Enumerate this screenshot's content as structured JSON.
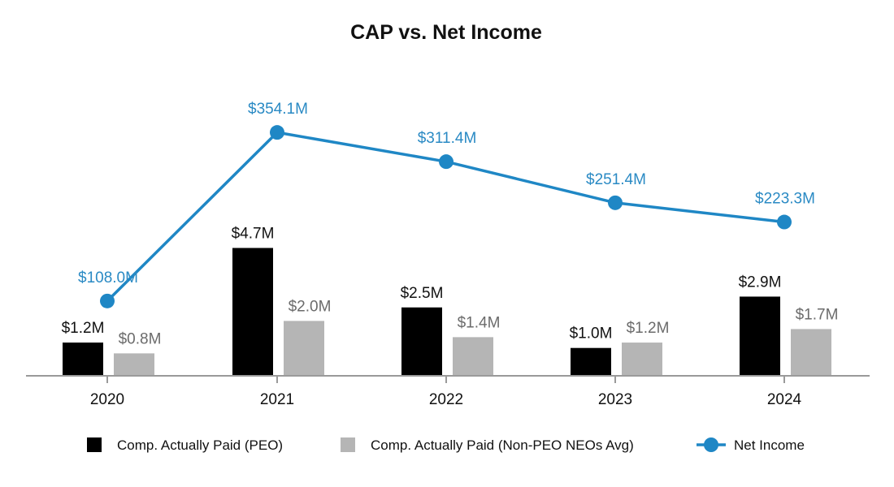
{
  "chart_data": {
    "type": "bar",
    "title": "CAP vs. Net Income",
    "categories": [
      "2020",
      "2021",
      "2022",
      "2023",
      "2024"
    ],
    "series": [
      {
        "name": "Comp. Actually Paid (PEO)",
        "kind": "bar",
        "color": "#000000",
        "values": [
          1.2,
          4.7,
          2.5,
          1.0,
          2.9
        ],
        "labels": [
          "$1.2M",
          "$4.7M",
          "$2.5M",
          "$1.0M",
          "$2.9M"
        ]
      },
      {
        "name": "Comp. Actually Paid (Non-PEO NEOs Avg)",
        "kind": "bar",
        "color": "#b5b5b5",
        "values": [
          0.8,
          2.0,
          1.4,
          1.2,
          1.7
        ],
        "labels": [
          "$0.8M",
          "$2.0M",
          "$1.4M",
          "$1.2M",
          "$1.7M"
        ]
      },
      {
        "name": "Net Income",
        "kind": "line",
        "color": "#1f87c5",
        "values": [
          108.0,
          354.1,
          311.4,
          251.4,
          223.3
        ],
        "labels": [
          "$108.0M",
          "$354.1M",
          "$311.4M",
          "$251.4M",
          "$223.3M"
        ]
      }
    ],
    "xlabel": "",
    "ylabel": "",
    "bar_ylim": [
      0,
      5
    ],
    "line_ylim": [
      0,
      400
    ],
    "grid": false,
    "legend_position": "bottom"
  }
}
